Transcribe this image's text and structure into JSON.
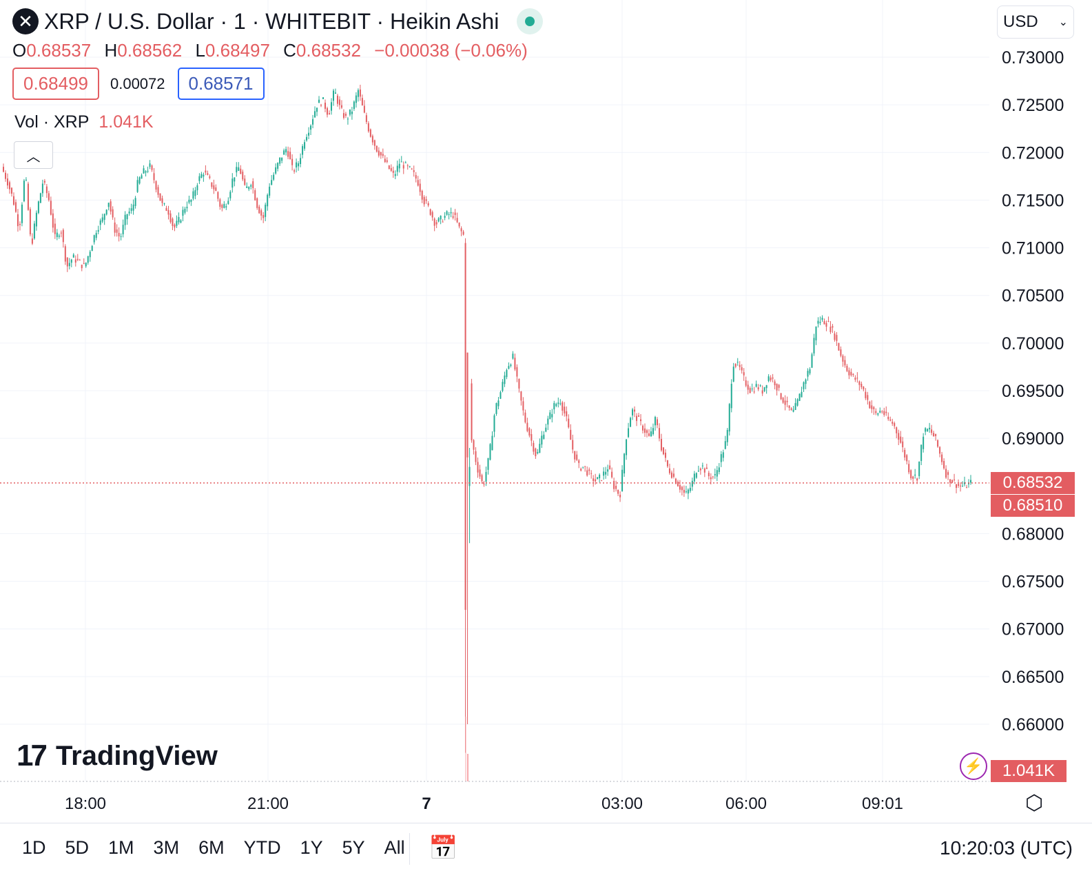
{
  "header": {
    "logo": "✕",
    "title": "XRP / U.S. Dollar · 1 · WHITEBIT · Heikin Ashi",
    "ohlc": [
      {
        "k": "O",
        "v": "0.68537"
      },
      {
        "k": "H",
        "v": "0.68562"
      },
      {
        "k": "L",
        "v": "0.68497"
      },
      {
        "k": "C",
        "v": "0.68532"
      }
    ],
    "change": "−0.00038 (−0.06%)",
    "bid": "0.68499",
    "spread": "0.00072",
    "ask": "0.68571",
    "vol_label": "Vol · XRP",
    "vol_value": "1.041K",
    "collapse_icon": "chevron-up-icon"
  },
  "currency": {
    "value": "USD",
    "icon": "chevron-down-icon"
  },
  "price_labels": {
    "last": "0.68532",
    "second": "0.68510",
    "volume": "1.041K"
  },
  "brand": "TradingView",
  "colors": {
    "up": "#22ab94",
    "down": "#e35d61",
    "grid": "#f0f3fa"
  },
  "chart_data": {
    "type": "candlestick",
    "style": "Heikin Ashi",
    "interval": "1",
    "ylim": [
      0.6555,
      0.7323
    ],
    "yticks": [
      "0.73000",
      "0.72500",
      "0.72000",
      "0.71500",
      "0.71000",
      "0.70500",
      "0.70000",
      "0.69500",
      "0.69000",
      "0.68000",
      "0.67500",
      "0.67000",
      "0.66500",
      "0.66000"
    ],
    "xticks": [
      {
        "label": "18:00",
        "bold": false
      },
      {
        "label": "21:00",
        "bold": false
      },
      {
        "label": "7",
        "bold": true
      },
      {
        "label": "03:00",
        "bold": false
      },
      {
        "label": "06:00",
        "bold": false
      },
      {
        "label": "09:01",
        "bold": false
      }
    ],
    "last_price": 0.68532,
    "series_path": [
      [
        0.7185,
        0.717
      ],
      [
        0.715,
        0.712
      ],
      [
        0.718,
        0.71
      ],
      [
        0.714,
        0.717
      ],
      [
        0.715,
        0.711
      ],
      [
        0.712,
        0.708
      ],
      [
        0.709,
        0.7085
      ],
      [
        0.708,
        0.71
      ],
      [
        0.712,
        0.713
      ],
      [
        0.715,
        0.712
      ],
      [
        0.711,
        0.7135
      ],
      [
        0.714,
        0.717
      ],
      [
        0.718,
        0.7185
      ],
      [
        0.7165,
        0.7145
      ],
      [
        0.714,
        0.712
      ],
      [
        0.713,
        0.7145
      ],
      [
        0.715,
        0.717
      ],
      [
        0.718,
        0.717
      ],
      [
        0.716,
        0.714
      ],
      [
        0.715,
        0.7175
      ],
      [
        0.7185,
        0.716
      ],
      [
        0.717,
        0.7145
      ],
      [
        0.713,
        0.7165
      ],
      [
        0.718,
        0.7195
      ],
      [
        0.7205,
        0.718
      ],
      [
        0.719,
        0.7215
      ],
      [
        0.723,
        0.725
      ],
      [
        0.7255,
        0.724
      ],
      [
        0.7265,
        0.7245
      ],
      [
        0.7235,
        0.7245
      ],
      [
        0.7265,
        0.724
      ],
      [
        0.722,
        0.7205
      ],
      [
        0.7195,
        0.7185
      ],
      [
        0.7175,
        0.719
      ],
      [
        0.7185,
        0.718
      ],
      [
        0.717,
        0.715
      ],
      [
        0.714,
        0.7125
      ],
      [
        0.713,
        0.7135
      ],
      [
        0.7135,
        0.712
      ],
      [
        0.711,
        0.69
      ],
      [
        0.687,
        0.685
      ],
      [
        0.688,
        0.693
      ],
      [
        0.695,
        0.6975
      ],
      [
        0.6985,
        0.695
      ],
      [
        0.692,
        0.69
      ],
      [
        0.688,
        0.6905
      ],
      [
        0.692,
        0.6935
      ],
      [
        0.694,
        0.692
      ],
      [
        0.689,
        0.687
      ],
      [
        0.687,
        0.686
      ],
      [
        0.6855,
        0.686
      ],
      [
        0.687,
        0.685
      ],
      [
        0.684,
        0.69
      ],
      [
        0.693,
        0.692
      ],
      [
        0.691,
        0.69
      ],
      [
        0.692,
        0.689
      ],
      [
        0.687,
        0.686
      ],
      [
        0.685,
        0.684
      ],
      [
        0.685,
        0.687
      ],
      [
        0.687,
        0.686
      ],
      [
        0.686,
        0.688
      ],
      [
        0.69,
        0.698
      ],
      [
        0.6975,
        0.696
      ],
      [
        0.695,
        0.6955
      ],
      [
        0.695,
        0.6965
      ],
      [
        0.696,
        0.6945
      ],
      [
        0.6935,
        0.6925
      ],
      [
        0.694,
        0.696
      ],
      [
        0.6975,
        0.702
      ],
      [
        0.7025,
        0.702
      ],
      [
        0.701,
        0.699
      ],
      [
        0.6975,
        0.6965
      ],
      [
        0.696,
        0.695
      ],
      [
        0.6935,
        0.6925
      ],
      [
        0.693,
        0.692
      ],
      [
        0.6915,
        0.69
      ],
      [
        0.688,
        0.686
      ],
      [
        0.686,
        0.6905
      ],
      [
        0.691,
        0.69
      ],
      [
        0.688,
        0.686
      ],
      [
        0.6855,
        0.685
      ],
      [
        0.685,
        0.6853
      ]
    ]
  }
}
